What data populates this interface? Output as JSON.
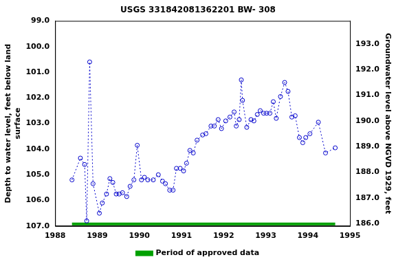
{
  "chart_data": {
    "type": "line",
    "title": "USGS 331842081362201 BW- 308",
    "x_label": null,
    "y_label": [
      "Depth to water level, feet below land",
      "surface"
    ],
    "y2_label": "Groundwater level above NGVD 1929, feet",
    "xlim": [
      1988,
      1995
    ],
    "xticks": [
      1988,
      1989,
      1990,
      1991,
      1992,
      1993,
      1994,
      1995
    ],
    "ylim": [
      107,
      99
    ],
    "yticks": [
      {
        "value": 99,
        "label": "99.0"
      },
      {
        "value": 100,
        "label": "100.0"
      },
      {
        "value": 101,
        "label": "101.0"
      },
      {
        "value": 102,
        "label": "102.0"
      },
      {
        "value": 103,
        "label": "103.0"
      },
      {
        "value": 104,
        "label": "104.0"
      },
      {
        "value": 105,
        "label": "105.0"
      },
      {
        "value": 106,
        "label": "106.0"
      },
      {
        "value": 107,
        "label": "107.0"
      }
    ],
    "y2lim": [
      185.9,
      193.9
    ],
    "y2ticks": [
      {
        "value": 186,
        "label": "186.0"
      },
      {
        "value": 187,
        "label": "187.0"
      },
      {
        "value": 188,
        "label": "188.0"
      },
      {
        "value": 189,
        "label": "189.0"
      },
      {
        "value": 190,
        "label": "190.0"
      },
      {
        "value": 191,
        "label": "191.0"
      },
      {
        "value": 192,
        "label": "192.0"
      },
      {
        "value": 193,
        "label": "193.0"
      }
    ],
    "grid": false,
    "legend": "bottom",
    "series": [
      {
        "color": "#0000cc",
        "marker": "circle",
        "line_style": "dotted",
        "x": [
          1988.4,
          1988.6,
          1988.7,
          1988.75,
          1988.82,
          1988.9,
          1989.05,
          1989.12,
          1989.22,
          1989.3,
          1989.37,
          1989.45,
          1989.52,
          1989.6,
          1989.7,
          1989.78,
          1989.87,
          1989.95,
          1990.05,
          1990.12,
          1990.2,
          1990.33,
          1990.45,
          1990.55,
          1990.62,
          1990.72,
          1990.8,
          1990.88,
          1990.97,
          1991.05,
          1991.12,
          1991.2,
          1991.28,
          1991.37,
          1991.5,
          1991.58,
          1991.7,
          1991.78,
          1991.87,
          1991.95,
          1992.05,
          1992.15,
          1992.25,
          1992.3,
          1992.37,
          1992.42,
          1992.45,
          1992.55,
          1992.65,
          1992.72,
          1992.8,
          1992.87,
          1992.95,
          1993.02,
          1993.1,
          1993.18,
          1993.25,
          1993.35,
          1993.45,
          1993.53,
          1993.62,
          1993.7,
          1993.8,
          1993.88,
          1993.95,
          1994.05,
          1994.25,
          1994.42,
          1994.65
        ],
        "values": [
          105.2,
          104.35,
          104.6,
          106.8,
          100.6,
          105.35,
          106.5,
          106.1,
          105.75,
          105.15,
          105.3,
          105.75,
          105.75,
          105.7,
          105.85,
          105.45,
          105.2,
          103.85,
          105.2,
          105.1,
          105.2,
          105.2,
          105.0,
          105.25,
          105.35,
          105.6,
          105.6,
          104.75,
          104.75,
          104.85,
          104.55,
          104.05,
          104.15,
          103.65,
          103.45,
          103.4,
          103.1,
          103.1,
          102.85,
          103.2,
          102.9,
          102.75,
          102.55,
          103.1,
          102.85,
          101.3,
          102.1,
          103.15,
          102.85,
          102.9,
          102.65,
          102.5,
          102.6,
          102.6,
          102.6,
          102.15,
          102.8,
          101.95,
          101.4,
          101.75,
          102.75,
          102.7,
          103.55,
          103.75,
          103.55,
          103.4,
          102.95,
          104.15,
          103.95
        ]
      },
      {
        "name": "Period of approved data",
        "color": "#00a000",
        "marker": "none",
        "line_style": "solid",
        "x": [
          1988.4,
          1994.65
        ],
        "values": [
          106.92,
          106.92
        ]
      }
    ]
  }
}
